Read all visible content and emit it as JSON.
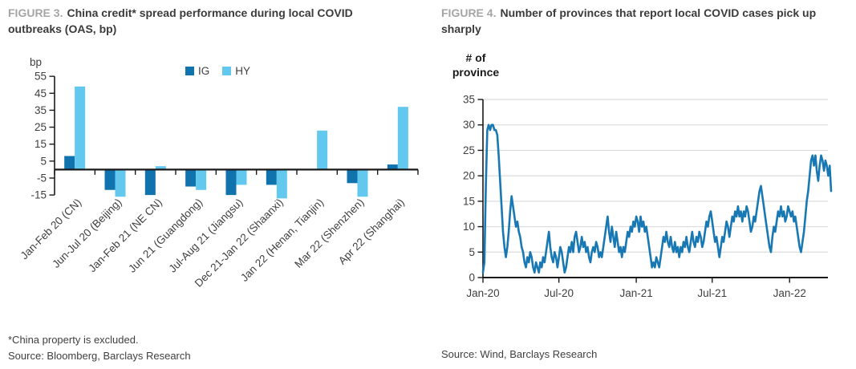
{
  "figure3": {
    "figure_label": "FIGURE 3.",
    "title_line1": "China credit* spread performance during local COVID",
    "title_line2": "outbreaks (OAS, bp)",
    "y_axis_unit": "bp",
    "footnote": "*China property is excluded.",
    "source": "Source: Bloomberg, Barclays Research",
    "chart_data": {
      "type": "bar",
      "title": "China credit* spread performance during local COVID outbreaks (OAS, bp)",
      "ylabel": "bp",
      "ylim": [
        -18,
        55
      ],
      "yticks": [
        55,
        45,
        35,
        25,
        15,
        5,
        -5,
        -15
      ],
      "categories": [
        "Jan-Feb 20 (CN)",
        "Jun-Jul 20 (Beijing)",
        "Jan-Feb 21 (NE CN)",
        "Jun 21 (Guangdong)",
        "Jul-Aug 21 (Jiangsu)",
        "Dec 21-Jan 22 (Shaanxi)",
        "Jan 22 (Henan, Tianjin)",
        "Mar 22 (Shenzhen)",
        "Apr 22 (Shanghai)"
      ],
      "series": [
        {
          "name": "IG",
          "color": "#1173ae",
          "values": [
            8,
            -12,
            -15,
            -10,
            -15,
            -9,
            0,
            -8,
            3
          ]
        },
        {
          "name": "HY",
          "color": "#63c8ee",
          "values": [
            49,
            -16,
            2,
            -12,
            -9,
            -17,
            23,
            -16,
            37
          ]
        }
      ],
      "legend_position": "top"
    }
  },
  "figure4": {
    "figure_label": "FIGURE 4.",
    "title_line1": "Number of provinces that report local COVID cases pick up",
    "title_line2": "sharply",
    "y_axis_unit_line1": "# of",
    "y_axis_unit_line2": "province",
    "source": "Source: Wind, Barclays Research",
    "chart_data": {
      "type": "line",
      "title": "Number of provinces that report local COVID cases pick up sharply",
      "ylabel": "# of province",
      "ylim": [
        0,
        35
      ],
      "yticks": [
        0,
        5,
        10,
        15,
        20,
        25,
        30,
        35
      ],
      "grid": true,
      "color": "#1878b4",
      "series_name": "# of provinces reporting local COVID cases picking up sharply",
      "x_ticks": [
        {
          "label": "Jan-20",
          "index": 0
        },
        {
          "label": "Jul-20",
          "index": 53
        },
        {
          "label": "Jan-21",
          "index": 107
        },
        {
          "label": "Jul-21",
          "index": 160
        },
        {
          "label": "Jan-22",
          "index": 214
        }
      ],
      "values": [
        1,
        3,
        18,
        29,
        30,
        29,
        30,
        30,
        29,
        29,
        28,
        24,
        19,
        14,
        9,
        6,
        4,
        6,
        9,
        13,
        16,
        14,
        12,
        10,
        11,
        9,
        8,
        6,
        5,
        3,
        2,
        4,
        3,
        5,
        4,
        2,
        1,
        3,
        2,
        1,
        3,
        2,
        4,
        3,
        5,
        7,
        9,
        6,
        4,
        3,
        5,
        4,
        2,
        4,
        6,
        5,
        3,
        1,
        2,
        4,
        6,
        5,
        7,
        5,
        8,
        9,
        7,
        5,
        6,
        8,
        6,
        7,
        5,
        6,
        4,
        3,
        5,
        6,
        5,
        7,
        6,
        4,
        5,
        4,
        6,
        8,
        10,
        12,
        9,
        7,
        10,
        8,
        6,
        9,
        7,
        5,
        6,
        4,
        6,
        5,
        7,
        9,
        8,
        10,
        9,
        11,
        10,
        12,
        11,
        9,
        12,
        10,
        11,
        9,
        10,
        8,
        6,
        4,
        2,
        3,
        2,
        4,
        3,
        2,
        4,
        6,
        8,
        7,
        9,
        7,
        6,
        8,
        6,
        5,
        7,
        5,
        6,
        4,
        6,
        5,
        7,
        6,
        8,
        6,
        5,
        7,
        9,
        7,
        6,
        8,
        7,
        9,
        8,
        6,
        7,
        9,
        11,
        10,
        12,
        13,
        11,
        9,
        7,
        8,
        6,
        4,
        6,
        8,
        7,
        9,
        11,
        10,
        8,
        10,
        12,
        11,
        13,
        12,
        14,
        12,
        13,
        11,
        13,
        12,
        14,
        13,
        11,
        9,
        10,
        12,
        11,
        13,
        15,
        17,
        18,
        16,
        14,
        12,
        10,
        8,
        6,
        5,
        8,
        10,
        9,
        11,
        13,
        12,
        14,
        12,
        13,
        11,
        12,
        14,
        13,
        12,
        13,
        11,
        12,
        10,
        8,
        6,
        5,
        7,
        9,
        12,
        15,
        17,
        20,
        23,
        24,
        22,
        24,
        21,
        19,
        22,
        24,
        23,
        21,
        23,
        22,
        20,
        22,
        17
      ]
    }
  }
}
